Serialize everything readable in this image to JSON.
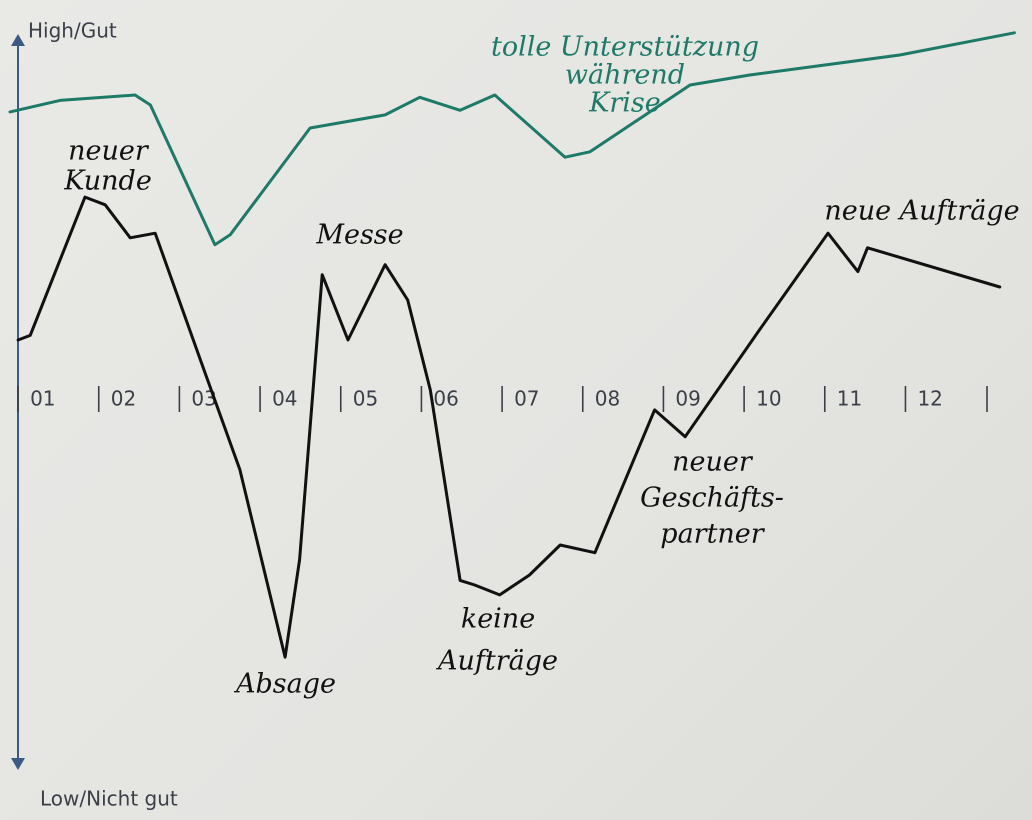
{
  "chart_data": {
    "type": "line",
    "x_categories_note_free": null,
    "xlim": [
      0.9,
      13.42
    ],
    "ylim": [
      0,
      100
    ],
    "xticks": [
      {
        "value": 1,
        "label": "01"
      },
      {
        "value": 2,
        "label": "02"
      },
      {
        "value": 3,
        "label": "03"
      },
      {
        "value": 4,
        "label": "04"
      },
      {
        "value": 5,
        "label": "05"
      },
      {
        "value": 6,
        "label": "06"
      },
      {
        "value": 7,
        "label": "07"
      },
      {
        "value": 8,
        "label": "08"
      },
      {
        "value": 9,
        "label": "09"
      },
      {
        "value": 10,
        "label": "10"
      },
      {
        "value": 11,
        "label": "11"
      },
      {
        "value": 12,
        "label": "12"
      }
    ],
    "yticks": [
      {
        "value": 0,
        "label": "Low/Nicht gut"
      },
      {
        "value": 100,
        "label": "High/Gut"
      }
    ],
    "series": [
      {
        "color": "#1d7a68",
        "x": [
          0.9,
          1.52,
          2.45,
          2.64,
          3.44,
          3.63,
          4.62,
          5.55,
          5.98,
          6.48,
          6.91,
          7.78,
          8.09,
          9.33,
          10.07,
          11.93,
          13.35
        ],
        "values": [
          89.6,
          91.1,
          91.8,
          90.5,
          72.3,
          73.6,
          87.5,
          89.2,
          91.5,
          89.8,
          91.8,
          83.7,
          84.4,
          93.1,
          94.4,
          97.0,
          99.9
        ]
      },
      {
        "color": "#111111",
        "x": [
          1.0,
          1.15,
          1.52,
          1.83,
          2.08,
          2.39,
          2.7,
          3.26,
          3.75,
          4.31,
          4.49,
          4.77,
          5.09,
          5.55,
          5.83,
          6.11,
          6.48,
          6.66,
          6.97,
          7.34,
          7.72,
          8.15,
          8.89,
          9.27,
          10.19,
          11.04,
          11.41,
          11.53,
          13.17
        ],
        "values": [
          59.9,
          60.5,
          70.3,
          78.5,
          77.5,
          73.2,
          73.8,
          57.3,
          43.0,
          18.6,
          31.3,
          68.4,
          59.9,
          69.7,
          65.1,
          53.4,
          28.6,
          28.0,
          26.7,
          29.3,
          33.2,
          32.2,
          50.8,
          47.3,
          61.2,
          73.8,
          68.8,
          71.9,
          66.8
        ]
      }
    ],
    "annotations": [
      {
        "lines": [
          "neuer",
          "Kunde"
        ]
      },
      {
        "lines": [
          "Absage"
        ]
      },
      {
        "lines": [
          "Messe"
        ]
      },
      {
        "lines": [
          "keine",
          "Aufträge"
        ]
      },
      {
        "lines": [
          "neuer",
          "Geschäfts-",
          "partner"
        ]
      },
      {
        "lines": [
          "neue Aufträge"
        ]
      },
      {
        "lines": [
          "tolle Unterstützung",
          "während",
          "Krise"
        ]
      }
    ]
  }
}
